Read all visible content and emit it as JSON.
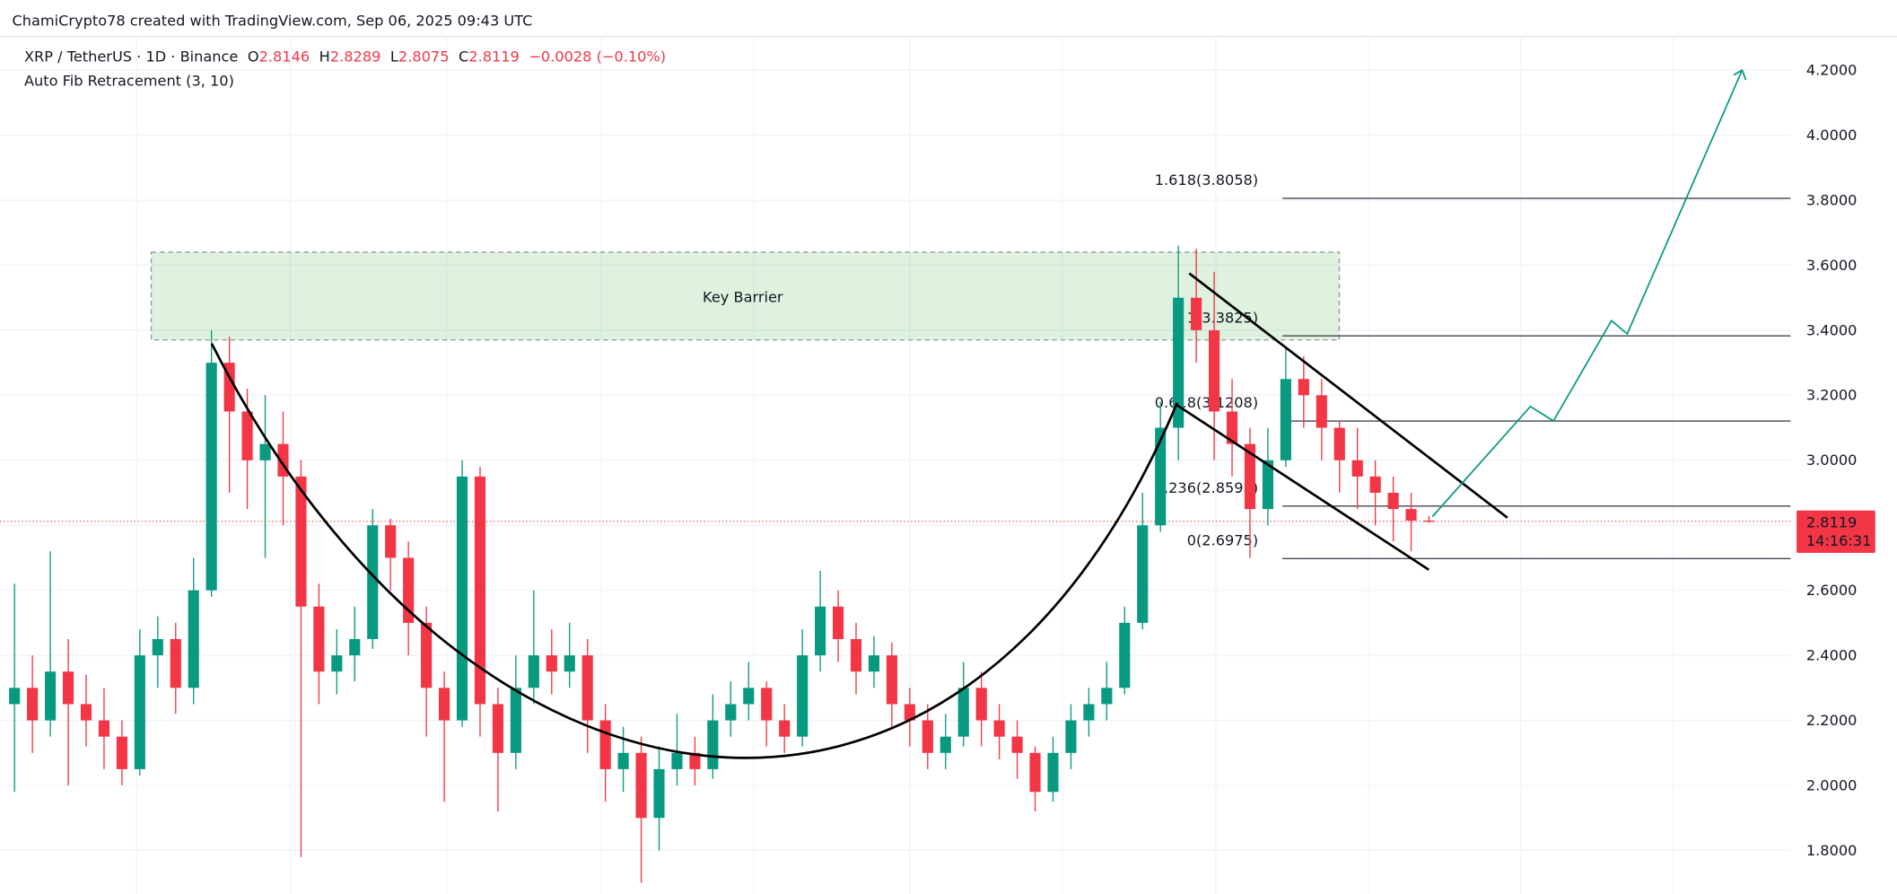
{
  "chart_data": {
    "type": "candlestick",
    "attribution": "ChamiCrypto78 created with TradingView.com, Sep 06, 2025 09:43 UTC",
    "symbol": "XRP / TetherUS · 1D · Binance",
    "ohlc_labels": [
      "O",
      "H",
      "L",
      "C"
    ],
    "change": "−0.0028 (−0.10%)",
    "indicator": "Auto Fib Retracement (3, 10)",
    "countdown": "14:16:31",
    "up_color": "#089981",
    "down_color": "#f23645",
    "grid": true,
    "ylim": [
      1.666,
      4.304
    ],
    "yticks": [
      {
        "value": 1.8,
        "label": "1.8000"
      },
      {
        "value": 2,
        "label": "2.0000"
      },
      {
        "value": 2.2,
        "label": "2.2000"
      },
      {
        "value": 2.4,
        "label": "2.4000"
      },
      {
        "value": 2.6,
        "label": "2.6000"
      },
      {
        "value": 2.8,
        "label": "2.8000"
      },
      {
        "value": 3,
        "label": "3.0000"
      },
      {
        "value": 3.2,
        "label": "3.2000"
      },
      {
        "value": 3.4,
        "label": "3.4000"
      },
      {
        "value": 3.6,
        "label": "3.6000"
      },
      {
        "value": 3.8,
        "label": "3.8000"
      },
      {
        "value": 4,
        "label": "4.0000"
      },
      {
        "value": 4.2,
        "label": "4.2000"
      }
    ],
    "open": [
      2.25,
      2.3,
      2.2,
      2.35,
      2.25,
      2.2,
      2.15,
      2.05,
      2.4,
      2.45,
      2.3,
      2.6,
      3.3,
      3.15,
      3.0,
      3.05,
      2.95,
      2.55,
      2.35,
      2.4,
      2.45,
      2.8,
      2.7,
      2.5,
      2.3,
      2.2,
      2.95,
      2.25,
      2.1,
      2.3,
      2.4,
      2.35,
      2.4,
      2.2,
      2.05,
      2.1,
      1.9,
      2.05,
      2.1,
      2.05,
      2.2,
      2.25,
      2.3,
      2.2,
      2.15,
      2.4,
      2.55,
      2.45,
      2.35,
      2.4,
      2.25,
      2.2,
      2.1,
      2.15,
      2.3,
      2.2,
      2.15,
      2.1,
      1.98,
      2.1,
      2.2,
      2.25,
      2.3,
      2.5,
      2.8,
      3.1,
      3.5,
      3.4,
      3.15,
      3.05,
      2.85,
      3.0,
      3.25,
      3.2,
      3.1,
      3.0,
      2.95,
      2.9,
      2.85,
      2.8146
    ],
    "high": [
      2.62,
      2.4,
      2.72,
      2.45,
      2.34,
      2.3,
      2.2,
      2.48,
      2.52,
      2.5,
      2.7,
      3.4,
      3.38,
      3.22,
      3.2,
      3.15,
      3.0,
      2.62,
      2.48,
      2.55,
      2.85,
      2.82,
      2.75,
      2.55,
      2.35,
      3.0,
      2.98,
      2.3,
      2.4,
      2.6,
      2.48,
      2.5,
      2.45,
      2.25,
      2.18,
      2.15,
      2.12,
      2.22,
      2.15,
      2.28,
      2.32,
      2.38,
      2.32,
      2.25,
      2.48,
      2.66,
      2.6,
      2.5,
      2.46,
      2.44,
      2.3,
      2.25,
      2.22,
      2.38,
      2.35,
      2.25,
      2.2,
      2.12,
      2.15,
      2.25,
      2.3,
      2.38,
      2.55,
      2.9,
      3.18,
      3.66,
      3.65,
      3.58,
      3.25,
      3.1,
      3.1,
      3.35,
      3.32,
      3.25,
      3.12,
      3.1,
      3.0,
      2.95,
      2.9,
      2.8289
    ],
    "low": [
      1.98,
      2.1,
      2.15,
      2.0,
      2.12,
      2.05,
      2.0,
      2.03,
      2.3,
      2.22,
      2.25,
      2.58,
      2.9,
      2.85,
      2.7,
      2.8,
      1.78,
      2.25,
      2.28,
      2.32,
      2.42,
      2.6,
      2.4,
      2.15,
      1.95,
      2.18,
      2.15,
      1.92,
      2.05,
      2.25,
      2.28,
      2.3,
      2.1,
      1.95,
      1.98,
      1.7,
      1.8,
      2.0,
      2.0,
      2.02,
      2.15,
      2.2,
      2.12,
      2.1,
      2.12,
      2.35,
      2.38,
      2.28,
      2.3,
      2.18,
      2.12,
      2.05,
      2.05,
      2.12,
      2.12,
      2.08,
      2.02,
      1.92,
      1.95,
      2.05,
      2.15,
      2.2,
      2.28,
      2.48,
      2.78,
      3.0,
      3.3,
      3.0,
      2.95,
      2.7,
      2.8,
      2.98,
      3.1,
      3.0,
      2.9,
      2.85,
      2.8,
      2.75,
      2.72,
      2.8075
    ],
    "close": [
      2.3,
      2.2,
      2.35,
      2.25,
      2.2,
      2.15,
      2.05,
      2.4,
      2.45,
      2.3,
      2.6,
      3.3,
      3.15,
      3.0,
      3.05,
      2.95,
      2.55,
      2.35,
      2.4,
      2.45,
      2.8,
      2.7,
      2.5,
      2.3,
      2.2,
      2.95,
      2.25,
      2.1,
      2.3,
      2.4,
      2.35,
      2.4,
      2.2,
      2.05,
      2.1,
      1.9,
      2.05,
      2.1,
      2.05,
      2.2,
      2.25,
      2.3,
      2.2,
      2.15,
      2.4,
      2.55,
      2.45,
      2.35,
      2.4,
      2.25,
      2.2,
      2.1,
      2.15,
      2.3,
      2.2,
      2.15,
      2.1,
      1.98,
      2.1,
      2.2,
      2.25,
      2.3,
      2.5,
      2.8,
      3.1,
      3.5,
      3.4,
      3.15,
      3.05,
      2.85,
      3.0,
      3.25,
      3.2,
      3.1,
      3.0,
      2.95,
      2.9,
      2.85,
      2.8146,
      2.8119
    ],
    "zone": {
      "label": "Key Barrier",
      "top": 3.64,
      "bottom": 3.37
    },
    "fib_levels": [
      {
        "label": "1.618(3.8058)",
        "value": 3.8058
      },
      {
        "label": "1(3.3825)",
        "value": 3.3825
      },
      {
        "label": "0.618(3.1208)",
        "value": 3.1208
      },
      {
        "label": "0.236(2.8592)",
        "value": 2.8592
      },
      {
        "label": "0(2.6975)",
        "value": 2.6975
      }
    ]
  }
}
